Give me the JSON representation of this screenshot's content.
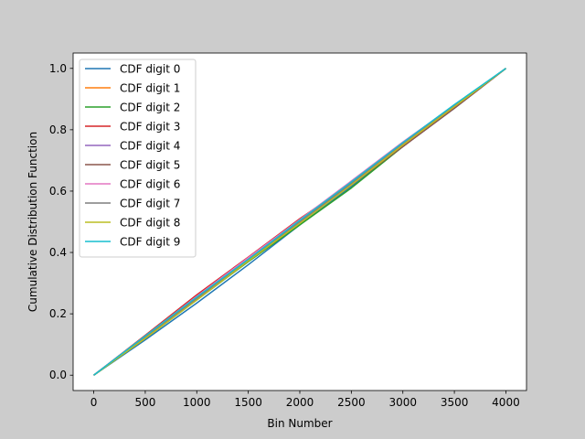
{
  "chart_data": {
    "type": "line",
    "title": "",
    "xlabel": "Bin Number",
    "ylabel": "Cumulative Distribution Function",
    "xlim": [
      -200,
      4200
    ],
    "ylim": [
      -0.05,
      1.05
    ],
    "xticks": [
      0,
      500,
      1000,
      1500,
      2000,
      2500,
      3000,
      3500,
      4000
    ],
    "yticks": [
      0.0,
      0.2,
      0.4,
      0.6,
      0.8,
      1.0
    ],
    "xtick_labels": [
      "0",
      "500",
      "1000",
      "1500",
      "2000",
      "2500",
      "3000",
      "3500",
      "4000"
    ],
    "ytick_labels": [
      "0.0",
      "0.2",
      "0.4",
      "0.6",
      "0.8",
      "1.0"
    ],
    "grid": false,
    "legend_position": "top-left",
    "x": [
      0,
      500,
      1000,
      1500,
      2000,
      2500,
      3000,
      3500,
      4000
    ],
    "series": [
      {
        "name": "CDF digit 0",
        "color": "#1f77b4",
        "values": [
          0.0,
          0.115,
          0.235,
          0.36,
          0.49,
          0.615,
          0.745,
          0.87,
          1.0
        ]
      },
      {
        "name": "CDF digit 1",
        "color": "#ff7f0e",
        "values": [
          0.0,
          0.125,
          0.255,
          0.38,
          0.5,
          0.625,
          0.75,
          0.875,
          1.0
        ]
      },
      {
        "name": "CDF digit 2",
        "color": "#2ca02c",
        "values": [
          0.0,
          0.12,
          0.245,
          0.37,
          0.49,
          0.61,
          0.745,
          0.875,
          1.0
        ]
      },
      {
        "name": "CDF digit 3",
        "color": "#d62728",
        "values": [
          0.0,
          0.13,
          0.262,
          0.385,
          0.51,
          0.625,
          0.745,
          0.872,
          1.0
        ]
      },
      {
        "name": "CDF digit 4",
        "color": "#9467bd",
        "values": [
          0.0,
          0.128,
          0.255,
          0.382,
          0.505,
          0.63,
          0.755,
          0.878,
          1.0
        ]
      },
      {
        "name": "CDF digit 5",
        "color": "#8c564b",
        "values": [
          0.0,
          0.125,
          0.252,
          0.378,
          0.5,
          0.62,
          0.745,
          0.87,
          1.0
        ]
      },
      {
        "name": "CDF digit 6",
        "color": "#e377c2",
        "values": [
          0.0,
          0.127,
          0.257,
          0.383,
          0.507,
          0.633,
          0.76,
          0.88,
          1.0
        ]
      },
      {
        "name": "CDF digit 7",
        "color": "#7f7f7f",
        "values": [
          0.0,
          0.124,
          0.25,
          0.375,
          0.5,
          0.625,
          0.752,
          0.877,
          1.0
        ]
      },
      {
        "name": "CDF digit 8",
        "color": "#bcbd22",
        "values": [
          0.0,
          0.12,
          0.245,
          0.372,
          0.495,
          0.62,
          0.75,
          0.875,
          1.0
        ]
      },
      {
        "name": "CDF digit 9",
        "color": "#17becf",
        "values": [
          0.0,
          0.128,
          0.255,
          0.378,
          0.505,
          0.63,
          0.758,
          0.882,
          1.0
        ]
      }
    ]
  }
}
